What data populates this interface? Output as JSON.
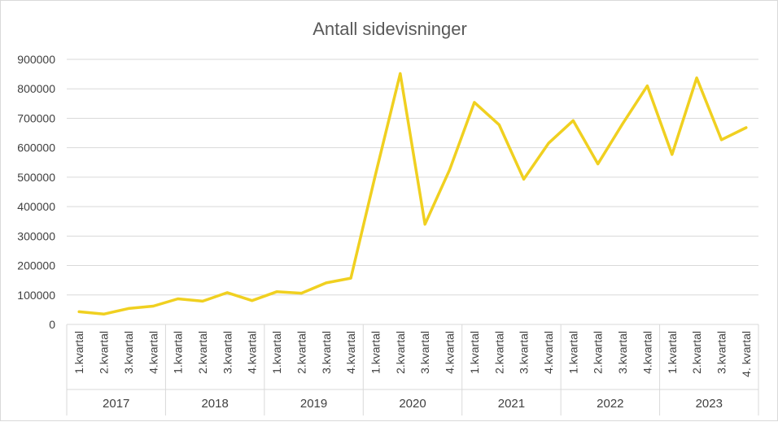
{
  "chart_data": {
    "type": "line",
    "title": "Antall sidevisninger",
    "xlabel": "",
    "ylabel": "",
    "ylim": [
      0,
      900000
    ],
    "y_ticks": [
      0,
      100000,
      200000,
      300000,
      400000,
      500000,
      600000,
      700000,
      800000,
      900000
    ],
    "y_tick_labels": [
      "0",
      "100000",
      "200000",
      "300000",
      "400000",
      "500000",
      "600000",
      "700000",
      "800000",
      "900000"
    ],
    "grid": true,
    "legend": "none",
    "groups": [
      {
        "label": "2017",
        "categories": [
          "1.kvartal",
          "2.kvartal",
          "3.kvartal",
          "4.kvartal"
        ]
      },
      {
        "label": "2018",
        "categories": [
          "1.kvartal",
          "2.kvartal",
          "3.kvartal",
          "4.kvartal"
        ]
      },
      {
        "label": "2019",
        "categories": [
          "1.kvartal",
          "2.kvartal",
          "3.kvartal",
          "4.kvartal"
        ]
      },
      {
        "label": "2020",
        "categories": [
          "1.kvartal",
          "2.kvartal",
          "3.kvartal",
          "4.kvartal"
        ]
      },
      {
        "label": "2021",
        "categories": [
          "1.kvartal",
          "2.kvartal",
          "3.kvartal",
          "4.kvartal"
        ]
      },
      {
        "label": "2022",
        "categories": [
          "1.kvartal",
          "2.kvartal",
          "3.kvartal",
          "4.kvartal"
        ]
      },
      {
        "label": "2023",
        "categories": [
          "1.kvartal",
          "2.kvartal",
          "3.kvartal",
          "4. kvartal"
        ]
      }
    ],
    "series": [
      {
        "color": "#f0d020",
        "values": [
          43000,
          35000,
          54000,
          62000,
          87000,
          79000,
          108000,
          81000,
          111000,
          106000,
          141000,
          157000,
          510000,
          852000,
          340000,
          525000,
          754000,
          678000,
          493000,
          615000,
          692000,
          545000,
          681000,
          810000,
          577000,
          837000,
          627000,
          668000
        ]
      }
    ]
  }
}
